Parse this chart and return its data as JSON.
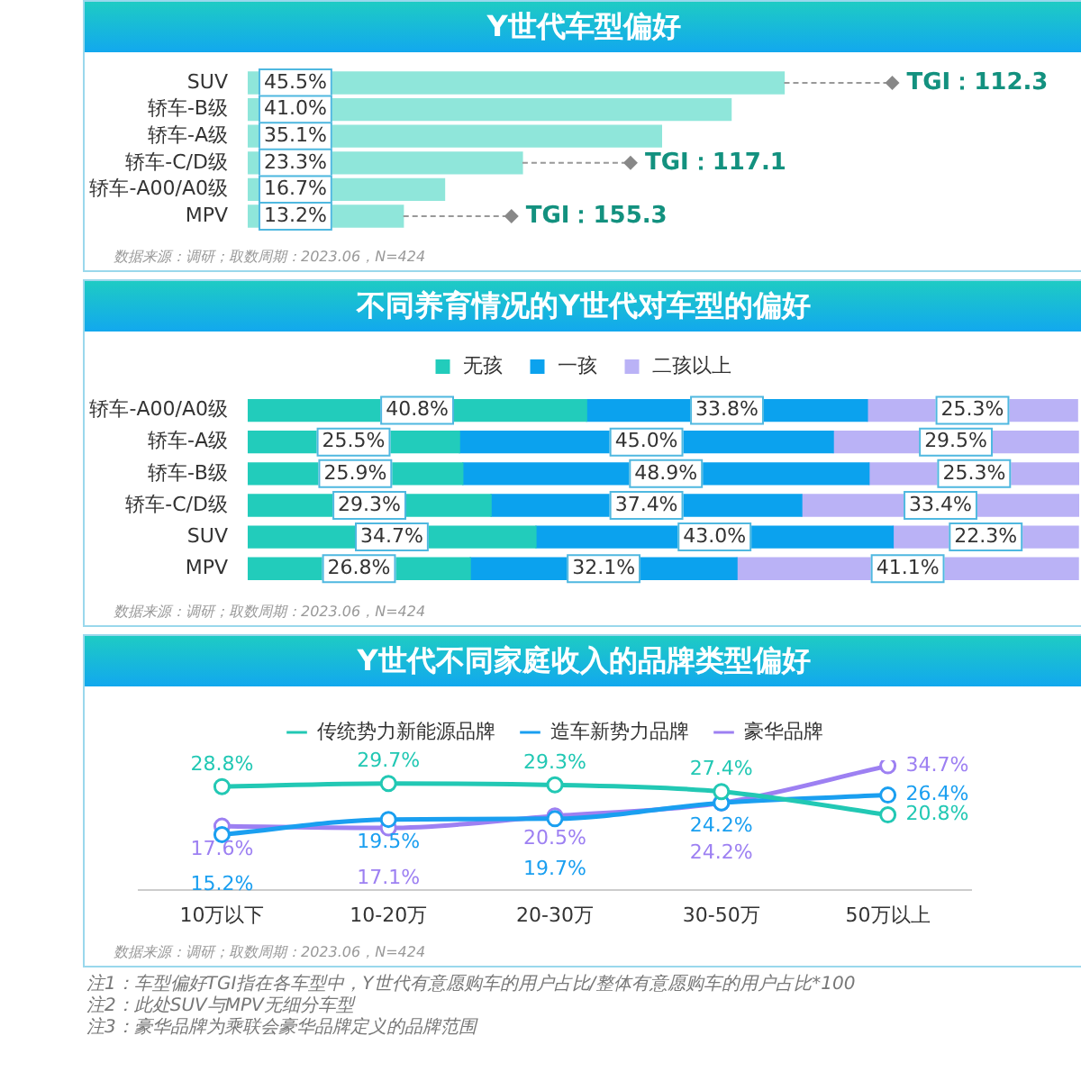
{
  "chart_data": [
    {
      "type": "bar",
      "title": "Y世代车型偏好",
      "orientation": "horizontal",
      "categories": [
        "SUV",
        "轿车-B级",
        "轿车-A级",
        "轿车-C/D级",
        "轿车-A00/A0级",
        "MPV"
      ],
      "values": [
        45.5,
        41.0,
        35.1,
        23.3,
        16.7,
        13.2
      ],
      "color": "#8fe6da",
      "value_labels": [
        "45.5%",
        "41.0%",
        "35.1%",
        "23.3%",
        "16.7%",
        "13.2%"
      ],
      "tick_labels": "y",
      "legend": false,
      "annotations": [
        {
          "text": "TGI：112.3",
          "x": 45.5,
          "y": "SUV"
        },
        {
          "text": "TGI：117.1",
          "x": 23.3,
          "y": "轿车-C/D级"
        },
        {
          "text": "TGI：155.3",
          "x": 13.2,
          "y": "MPV"
        },
        "数据来源：调研；取数周期：2023.06，N=424"
      ]
    },
    {
      "type": "bar",
      "title": "不同养育情况的Y世代对车型的偏好",
      "orientation": "horizontal",
      "stacked": true,
      "categories": [
        "轿车-A00/A0级",
        "轿车-A级",
        "轿车-B级",
        "轿车-C/D级",
        "SUV",
        "MPV"
      ],
      "series": [
        {
          "name": "无孩",
          "color": "#22ccbb",
          "values": [
            40.8,
            25.5,
            25.9,
            29.3,
            34.7,
            26.8
          ],
          "value_labels": [
            "40.8%",
            "25.5%",
            "25.9%",
            "29.3%",
            "34.7%",
            "26.8%"
          ]
        },
        {
          "name": "一孩",
          "color": "#0ba2ee",
          "values": [
            33.8,
            45.0,
            48.9,
            37.4,
            43.0,
            32.1
          ],
          "value_labels": [
            "33.8%",
            "45.0%",
            "48.9%",
            "37.4%",
            "43.0%",
            "32.1%"
          ]
        },
        {
          "name": "二孩以上",
          "color": "#bab2f6",
          "values": [
            25.3,
            29.5,
            25.3,
            33.4,
            22.3,
            41.1
          ],
          "value_labels": [
            "25.3%",
            "29.5%",
            "25.3%",
            "33.4%",
            "22.3%",
            "41.1%"
          ]
        }
      ],
      "tick_labels": "y",
      "legend": "top",
      "annotations": [
        "数据来源：调研；取数周期：2023.06，N=424"
      ]
    },
    {
      "type": "line",
      "title": "Y世代不同家庭收入的品牌类型偏好",
      "categories": [
        "10万以下",
        "10-20万",
        "20-30万",
        "30-50万",
        "50万以上"
      ],
      "series": [
        {
          "name": "传统势力新能源品牌",
          "color": "#22c8b4",
          "values": [
            28.8,
            29.7,
            29.3,
            27.4,
            20.8
          ],
          "value_labels": [
            "28.8%",
            "29.7%",
            "29.3%",
            "27.4%",
            "20.8%"
          ]
        },
        {
          "name": "造车新势力品牌",
          "color": "#1a9ff0",
          "values": [
            15.2,
            19.5,
            19.7,
            24.2,
            26.4
          ],
          "value_labels": [
            "15.2%",
            "19.5%",
            "19.7%",
            "24.2%",
            "26.4%"
          ]
        },
        {
          "name": "豪华品牌",
          "color": "#9d80f2",
          "values": [
            17.6,
            17.1,
            20.5,
            24.2,
            34.7
          ],
          "value_labels": [
            "17.6%",
            "17.1%",
            "20.5%",
            "24.2%",
            "34.7%"
          ]
        }
      ],
      "marker": "circle",
      "line_style": "solid",
      "tick_labels": "x",
      "legend": "top",
      "annotations": [
        "数据来源：调研；取数周期：2023.06，N=424",
        "注1：车型偏好TGI指在各车型中，Y世代有意愿购车的用户占比/整体有意愿购车的用户占比*100",
        "注2：此处SUV与MPV无细分车型",
        "注3：豪华品牌为乘联会豪华品牌定义的品牌范围"
      ]
    }
  ]
}
